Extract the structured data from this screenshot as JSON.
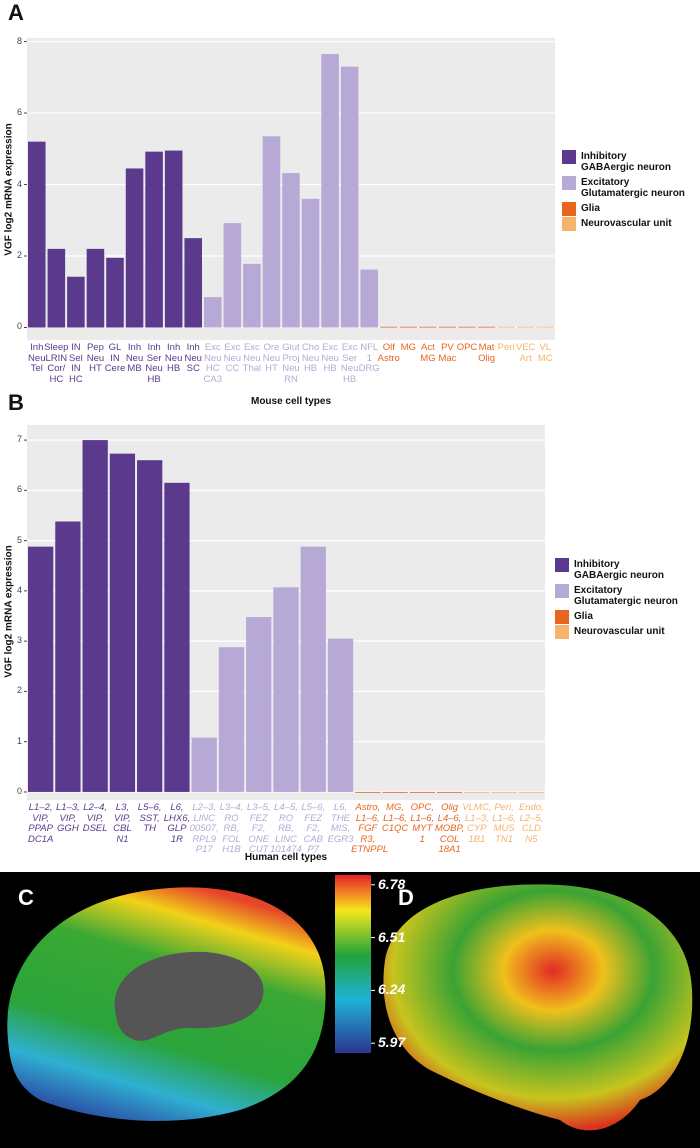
{
  "panel_labels": [
    "A",
    "B",
    "C",
    "D"
  ],
  "colorbar": {
    "lim": [
      5.92,
      6.83
    ],
    "ticks": [
      6.78,
      6.51,
      6.24,
      5.97
    ]
  },
  "chart_data": [
    {
      "type": "bar",
      "ylabel": "VGF log2 mRNA expression",
      "xlabel": "Mouse cell types",
      "categories": [
        "Inh\nNeu\nTel",
        "Sleep\nLRIN\nCor/\nHC",
        "IN\nSel\nIN\nHC",
        "Pep\nNeu\nHT",
        "GL\nIN\nCere",
        "Inh\nNeu\nMB",
        "Inh\nSer\nNeu\nHB",
        "Inh\nNeu\nHB",
        "Inh\nNeu\nSC",
        "Exc\nNeu\nHC\nCA3",
        "Exc\nNeu\nCC",
        "Exc\nNeu\nThal",
        "Ore\nNeu\nHT",
        "Glut\nProj\nNeu\nRN",
        "Cho\nNeu\nHB",
        "Exc\nNeu\nHB",
        "Exc\nSer\nNeu\nHB",
        "NFL\n1\nDRG",
        "Olf\nAstro",
        "MG",
        "Act\nMG",
        "PV\nMac",
        "OPC",
        "Mat\nOlig",
        "Peri",
        "VEC\nArt",
        "VL\nMC"
      ],
      "series": [
        {
          "name": "Inhibitory\nGABAergic neuron",
          "color": "#5b3a8e",
          "values": [
            5.2,
            2.2,
            1.42,
            2.2,
            1.95,
            4.45,
            4.92,
            4.95,
            2.5,
            null,
            null,
            null,
            null,
            null,
            null,
            null,
            null,
            null,
            null,
            null,
            null,
            null,
            null,
            null,
            null,
            null,
            null
          ]
        },
        {
          "name": "Excitatory\nGlutamatergic neuron",
          "color": "#b6a9d6",
          "values": [
            null,
            null,
            null,
            null,
            null,
            null,
            null,
            null,
            null,
            0.85,
            2.92,
            1.78,
            5.35,
            4.32,
            3.6,
            7.65,
            7.3,
            1.62,
            null,
            null,
            null,
            null,
            null,
            null,
            null,
            null,
            null
          ]
        },
        {
          "name": "Glia",
          "color": "#e8651d",
          "values": [
            null,
            null,
            null,
            null,
            null,
            null,
            null,
            null,
            null,
            null,
            null,
            null,
            null,
            null,
            null,
            null,
            null,
            null,
            0.02,
            0.02,
            0.02,
            0.02,
            0.02,
            0.02,
            null,
            null,
            null
          ]
        },
        {
          "name": "Neurovascular unit",
          "color": "#f5b36c",
          "values": [
            null,
            null,
            null,
            null,
            null,
            null,
            null,
            null,
            null,
            null,
            null,
            null,
            null,
            null,
            null,
            null,
            null,
            null,
            null,
            null,
            null,
            null,
            null,
            null,
            0.02,
            0.02,
            0.02
          ]
        }
      ],
      "ylim": [
        -0.35,
        8.1
      ],
      "yticks": [
        0,
        2,
        4,
        6,
        8
      ],
      "grid": true,
      "legend": "right",
      "category_label_style": "normal"
    },
    {
      "type": "bar",
      "ylabel": "VGF log2 mRNA expression",
      "xlabel": "Human cell types",
      "categories": [
        "L1–2,\nVIP,\nPPAP\nDC1A",
        "L1–3,\nVIP,\nGGH",
        "L2–4,\nVIP,\nDSEL",
        "L3,\nVIP,\nCBL\nN1",
        "L5–6,\nSST,\nTH",
        "L6,\nLHX6,\nGLP\n1R",
        "L2–3,\nLINC\n00507,\nRPL9\nP17",
        "L3–4,\nRO\nRB,\nFOL\nH1B",
        "L3–5,\nFEZ\nF2,\nONE\nCUT",
        "L4–5,\nRO\nRB,\nLINC\n101474",
        "L5–6,\nFEZ\nF2,\nCAB\nP7",
        "L6,\nTHE\nMIS,\nEGR3",
        "Astro,\nL1–6,\nFGF\nR3,\nETNPPL",
        "MG,\nL1–6,\nC1QC",
        "OPC,\nL1–6,\nMYT\n1",
        "Olig\nL4–6,\nMOBP,\nCOL\n18A1",
        "VLMC,\nL1–3,\nCYP\n1B1",
        "Peri,\nL1–6,\nMUS\nTN1",
        "Endo,\nL2–5,\nCLD\nN5"
      ],
      "series": [
        {
          "name": "Inhibitory\nGABAergic neuron",
          "color": "#5b3a8e",
          "values": [
            4.88,
            5.38,
            7.0,
            6.73,
            6.6,
            6.15,
            null,
            null,
            null,
            null,
            null,
            null,
            null,
            null,
            null,
            null,
            null,
            null,
            null
          ]
        },
        {
          "name": "Excitatory\nGlutamatergic neuron",
          "color": "#b6a9d6",
          "values": [
            null,
            null,
            null,
            null,
            null,
            null,
            1.08,
            2.88,
            3.48,
            4.07,
            4.88,
            3.05,
            null,
            null,
            null,
            null,
            null,
            null,
            null
          ]
        },
        {
          "name": "Glia",
          "color": "#e8651d",
          "values": [
            null,
            null,
            null,
            null,
            null,
            null,
            null,
            null,
            null,
            null,
            null,
            null,
            0,
            0,
            0,
            0,
            null,
            null,
            null
          ]
        },
        {
          "name": "Neurovascular unit",
          "color": "#f5b36c",
          "values": [
            null,
            null,
            null,
            null,
            null,
            null,
            null,
            null,
            null,
            null,
            null,
            null,
            null,
            null,
            null,
            null,
            0,
            0,
            0
          ]
        }
      ],
      "ylim": [
        -0.16,
        7.3
      ],
      "yticks": [
        0,
        1,
        2,
        3,
        4,
        5,
        6,
        7
      ],
      "grid": true,
      "legend": "right",
      "category_label_style": "italic"
    }
  ]
}
